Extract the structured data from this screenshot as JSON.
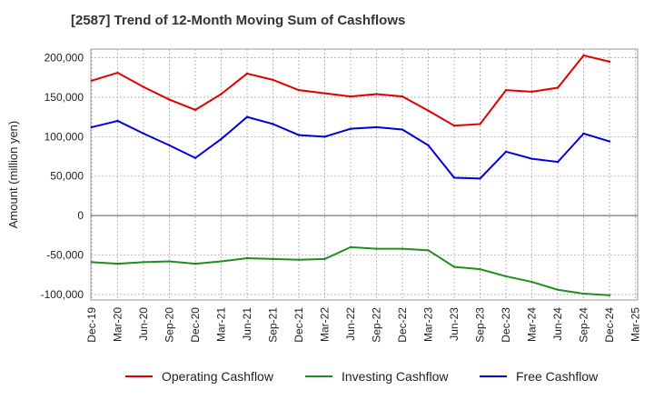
{
  "chart_data": {
    "type": "line",
    "title": "[2587]  Trend of 12-Month Moving Sum of Cashflows",
    "xlabel": "",
    "ylabel": "Amount (million yen)",
    "categories": [
      "Dec-19",
      "Mar-20",
      "Jun-20",
      "Sep-20",
      "Dec-20",
      "Mar-21",
      "Jun-21",
      "Sep-21",
      "Dec-21",
      "Mar-22",
      "Jun-22",
      "Sep-22",
      "Dec-22",
      "Mar-23",
      "Jun-23",
      "Sep-23",
      "Dec-23",
      "Mar-24",
      "Jun-24",
      "Sep-24",
      "Dec-24",
      "Mar-25"
    ],
    "yticks": [
      200000,
      150000,
      100000,
      50000,
      0,
      -50000,
      -100000
    ],
    "ytick_labels": [
      "200,000",
      "150,000",
      "100,000",
      "50,000",
      "0",
      "-50,000",
      "-100,000"
    ],
    "ylim": [
      -107000,
      211000
    ],
    "grid": true,
    "legend_position": "bottom",
    "series": [
      {
        "name": "Operating Cashflow",
        "color": "#e00000",
        "values": [
          171000,
          181000,
          163000,
          147000,
          134000,
          154000,
          180000,
          172000,
          159000,
          155000,
          151000,
          154000,
          151000,
          133000,
          114000,
          116000,
          159000,
          157000,
          162000,
          203000,
          195000,
          null
        ]
      },
      {
        "name": "Investing Cashflow",
        "color": "#228b22",
        "values": [
          -59000,
          -61000,
          -59000,
          -58000,
          -61000,
          -58000,
          -54000,
          -55000,
          -56000,
          -55000,
          -40000,
          -42000,
          -42000,
          -44000,
          -65000,
          -68000,
          -77000,
          -84000,
          -94000,
          -99000,
          -101000,
          null
        ]
      },
      {
        "name": "Free Cashflow",
        "color": "#0000dd",
        "values": [
          112000,
          120000,
          104000,
          89000,
          73000,
          97000,
          125000,
          116000,
          102000,
          100000,
          110000,
          112000,
          109000,
          89000,
          48000,
          47000,
          81000,
          72000,
          68000,
          104000,
          94000,
          null
        ]
      }
    ]
  }
}
